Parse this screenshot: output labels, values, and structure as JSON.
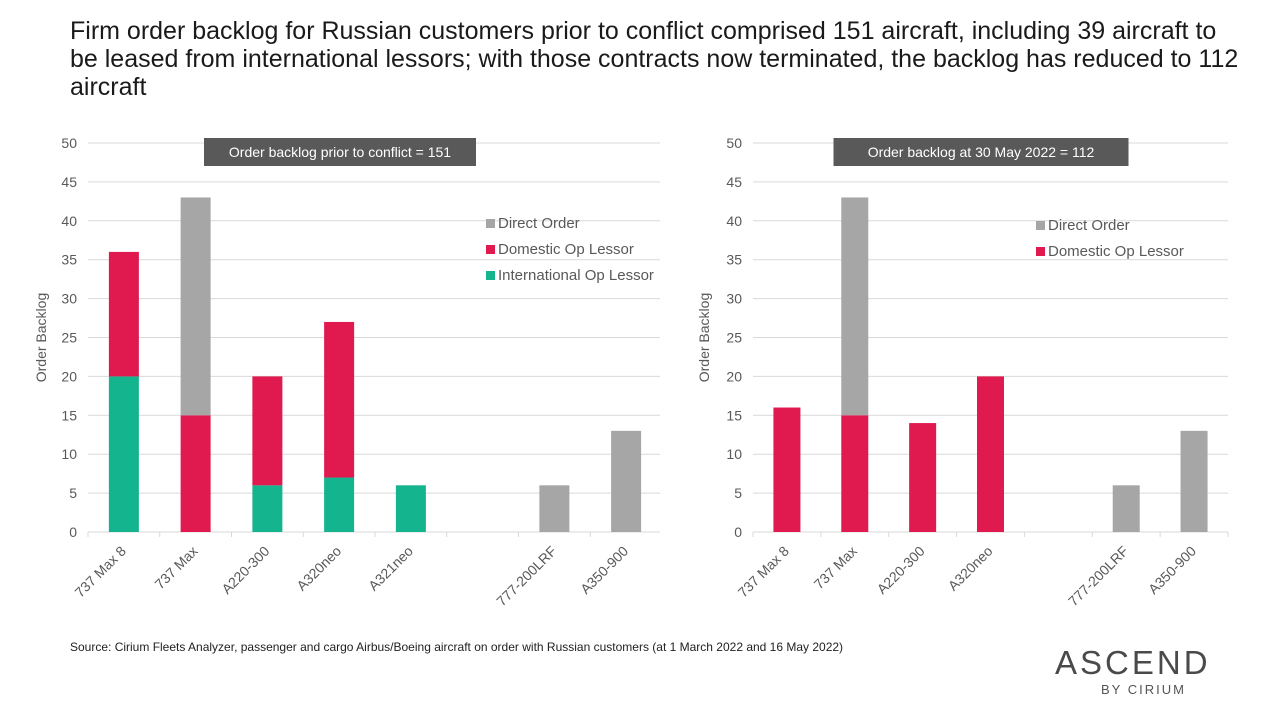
{
  "title": "Firm order backlog for Russian customers prior to conflict comprised 151 aircraft, including 39 aircraft to be leased from international lessors; with those contracts now terminated, the backlog has reduced to 112 aircraft",
  "source": "Source: Cirium Fleets Analyzer, passenger and cargo Airbus/Boeing aircraft on order with Russian customers (at 1 March 2022 and 16 May 2022)",
  "brand": {
    "name": "ASCEND",
    "sub": "BY CIRIUM"
  },
  "colors": {
    "direct": "#a6a6a6",
    "domestic": "#e0194f",
    "international": "#14b48e",
    "banner": "#595959",
    "grid": "#d9d9d9",
    "axis_text": "#595959"
  },
  "chart_data": [
    {
      "type": "bar",
      "stacked": true,
      "banner": "Order backlog prior to conflict = 151",
      "ylabel": "Order Backlog",
      "ylim": [
        0,
        50
      ],
      "yticks": [
        0,
        5,
        10,
        15,
        20,
        25,
        30,
        35,
        40,
        45,
        50
      ],
      "grid": true,
      "legend_position": "right",
      "categories": [
        "737 Max 8",
        "737 Max",
        "A220-300",
        "A320neo",
        "A321neo",
        "",
        "777-200LRF",
        "A350-900"
      ],
      "series": [
        {
          "name": "International Op Lessor",
          "color": "#14b48e",
          "values": [
            20,
            0,
            6,
            7,
            6,
            0,
            0,
            0
          ]
        },
        {
          "name": "Domestic Op Lessor",
          "color": "#e0194f",
          "values": [
            16,
            15,
            14,
            20,
            0,
            0,
            0,
            0
          ]
        },
        {
          "name": "Direct Order",
          "color": "#a6a6a6",
          "values": [
            0,
            28,
            0,
            0,
            0,
            0,
            6,
            13
          ]
        }
      ]
    },
    {
      "type": "bar",
      "stacked": true,
      "banner": "Order backlog at 30 May 2022 = 112",
      "ylabel": "Order Backlog",
      "ylim": [
        0,
        50
      ],
      "yticks": [
        0,
        5,
        10,
        15,
        20,
        25,
        30,
        35,
        40,
        45,
        50
      ],
      "grid": true,
      "legend_position": "right",
      "categories": [
        "737 Max 8",
        "737 Max",
        "A220-300",
        "A320neo",
        "",
        "777-200LRF",
        "A350-900"
      ],
      "series": [
        {
          "name": "Domestic Op Lessor",
          "color": "#e0194f",
          "values": [
            16,
            15,
            14,
            20,
            0,
            0,
            0
          ]
        },
        {
          "name": "Direct Order",
          "color": "#a6a6a6",
          "values": [
            0,
            28,
            0,
            0,
            0,
            6,
            13
          ]
        }
      ]
    }
  ]
}
